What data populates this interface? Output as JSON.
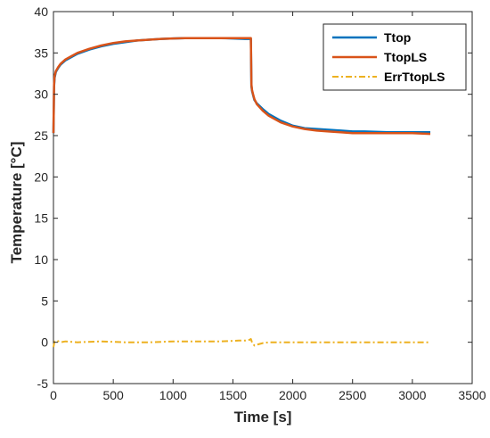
{
  "chart_data": {
    "type": "line",
    "xlabel": "Time [s]",
    "ylabel": "Temperature [°C]",
    "xlim": [
      0,
      3500
    ],
    "ylim": [
      -5,
      40
    ],
    "xticks": [
      0,
      500,
      1000,
      1500,
      2000,
      2500,
      3000,
      3500
    ],
    "yticks": [
      -5,
      0,
      5,
      10,
      15,
      20,
      25,
      30,
      35,
      40
    ],
    "grid": false,
    "legend_position": "top-right",
    "series": [
      {
        "name": "Ttop",
        "color": "#0072BD",
        "style": "solid",
        "x": [
          0,
          5,
          10,
          20,
          40,
          60,
          100,
          150,
          200,
          300,
          400,
          500,
          600,
          700,
          800,
          900,
          1000,
          1100,
          1200,
          1300,
          1400,
          1500,
          1600,
          1650,
          1655,
          1660,
          1670,
          1680,
          1700,
          1750,
          1800,
          1900,
          2000,
          2100,
          2200,
          2300,
          2400,
          2500,
          2600,
          2800,
          3000,
          3150
        ],
        "y": [
          25.3,
          31.0,
          32.0,
          32.7,
          33.2,
          33.6,
          34.1,
          34.5,
          34.9,
          35.4,
          35.8,
          36.1,
          36.3,
          36.5,
          36.6,
          36.7,
          36.75,
          36.8,
          36.8,
          36.8,
          36.8,
          36.75,
          36.7,
          36.7,
          31.0,
          30.4,
          29.8,
          29.3,
          28.9,
          28.2,
          27.6,
          26.8,
          26.2,
          25.9,
          25.8,
          25.7,
          25.6,
          25.5,
          25.5,
          25.4,
          25.4,
          25.4
        ]
      },
      {
        "name": "TtopLS",
        "color": "#D95319",
        "style": "solid",
        "x": [
          0,
          5,
          10,
          20,
          40,
          60,
          100,
          150,
          200,
          300,
          400,
          500,
          600,
          700,
          800,
          900,
          1000,
          1100,
          1200,
          1300,
          1400,
          1500,
          1600,
          1650,
          1655,
          1660,
          1670,
          1680,
          1700,
          1750,
          1800,
          1900,
          2000,
          2100,
          2200,
          2300,
          2400,
          2500,
          2600,
          2800,
          3000,
          3150
        ],
        "y": [
          25.3,
          31.2,
          32.2,
          32.8,
          33.3,
          33.7,
          34.2,
          34.6,
          35.0,
          35.5,
          35.9,
          36.2,
          36.4,
          36.5,
          36.6,
          36.7,
          36.75,
          36.8,
          36.8,
          36.8,
          36.8,
          36.8,
          36.8,
          36.8,
          31.2,
          30.5,
          29.9,
          29.4,
          28.8,
          28.0,
          27.4,
          26.6,
          26.1,
          25.8,
          25.6,
          25.5,
          25.4,
          25.3,
          25.3,
          25.3,
          25.3,
          25.2
        ]
      },
      {
        "name": "ErrTtopLS",
        "color": "#EDB120",
        "style": "dash-dot",
        "x": [
          0,
          5,
          10,
          30,
          60,
          100,
          200,
          400,
          600,
          800,
          1000,
          1200,
          1400,
          1550,
          1600,
          1640,
          1650,
          1660,
          1680,
          1700,
          1750,
          1800,
          2000,
          2200,
          2400,
          2600,
          2800,
          3000,
          3150
        ],
        "y": [
          -0.6,
          -0.2,
          0.1,
          0.2,
          0.0,
          0.1,
          0.0,
          0.1,
          0.0,
          0.0,
          0.1,
          0.1,
          0.1,
          0.2,
          0.2,
          0.3,
          0.4,
          0.0,
          -0.4,
          -0.3,
          -0.1,
          0.0,
          0.0,
          0.0,
          0.0,
          0.0,
          0.0,
          0.0,
          0.0
        ]
      }
    ]
  }
}
